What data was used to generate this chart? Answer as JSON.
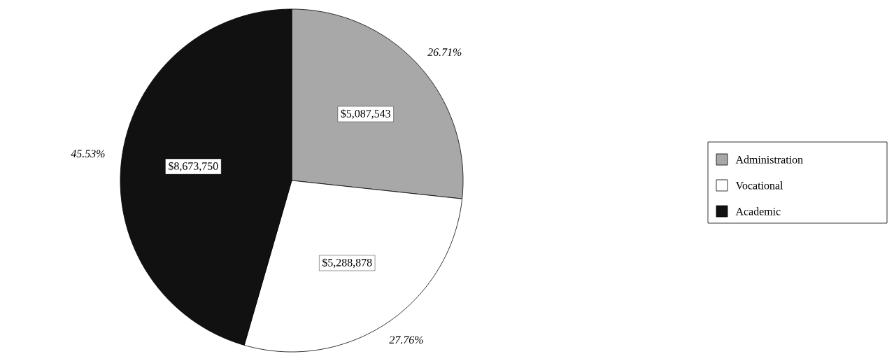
{
  "chart_data": {
    "type": "pie",
    "categories": [
      "Administration",
      "Vocational",
      "Academic"
    ],
    "values": [
      5087543,
      5288878,
      8673750
    ],
    "colors": [
      "#a8a8a8",
      "#ffffff",
      "#111111"
    ],
    "value_labels": [
      "$5,087,543",
      "$5,288,878",
      "$8,673,750"
    ],
    "annotations": [
      "26.71%",
      "27.76%",
      "45.53%"
    ],
    "legend": "right"
  }
}
